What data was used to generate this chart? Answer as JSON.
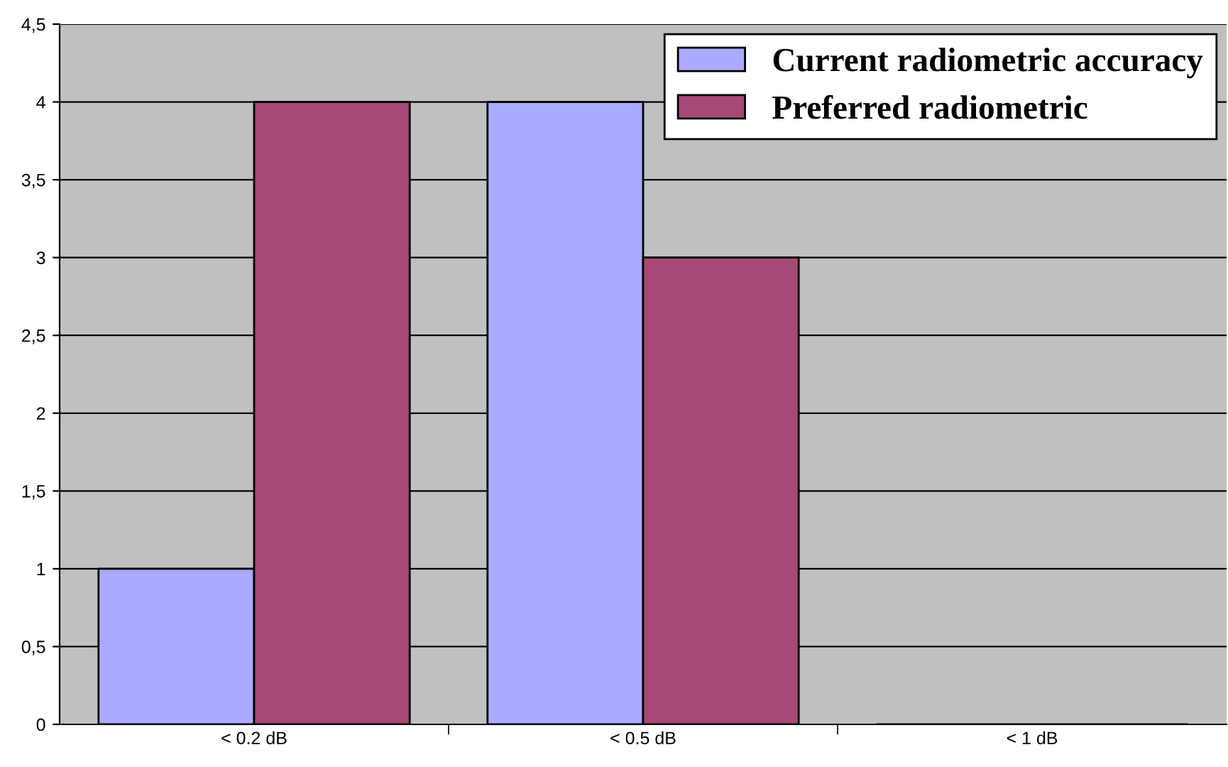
{
  "chart_data": {
    "type": "bar",
    "categories": [
      "< 0.2 dB",
      "< 0.5 dB",
      "< 1 dB"
    ],
    "series": [
      {
        "name": "Current radiometric accuracy",
        "color": "#aaaaff",
        "values": [
          1,
          4,
          0
        ]
      },
      {
        "name": "Preferred radiometric",
        "color": "#a64974",
        "values": [
          4,
          3,
          0
        ]
      }
    ],
    "ylim": [
      0,
      4.5
    ],
    "yticks": [
      0,
      {
        "value": 0.5,
        "label": "0,5"
      },
      1,
      {
        "value": 1.5,
        "label": "1,5"
      },
      2,
      {
        "value": 2.5,
        "label": "2,5"
      },
      3,
      {
        "value": 3.5,
        "label": "3,5"
      },
      4,
      {
        "value": 4.5,
        "label": "4,5"
      }
    ],
    "grid": "y",
    "legend": "top right"
  }
}
